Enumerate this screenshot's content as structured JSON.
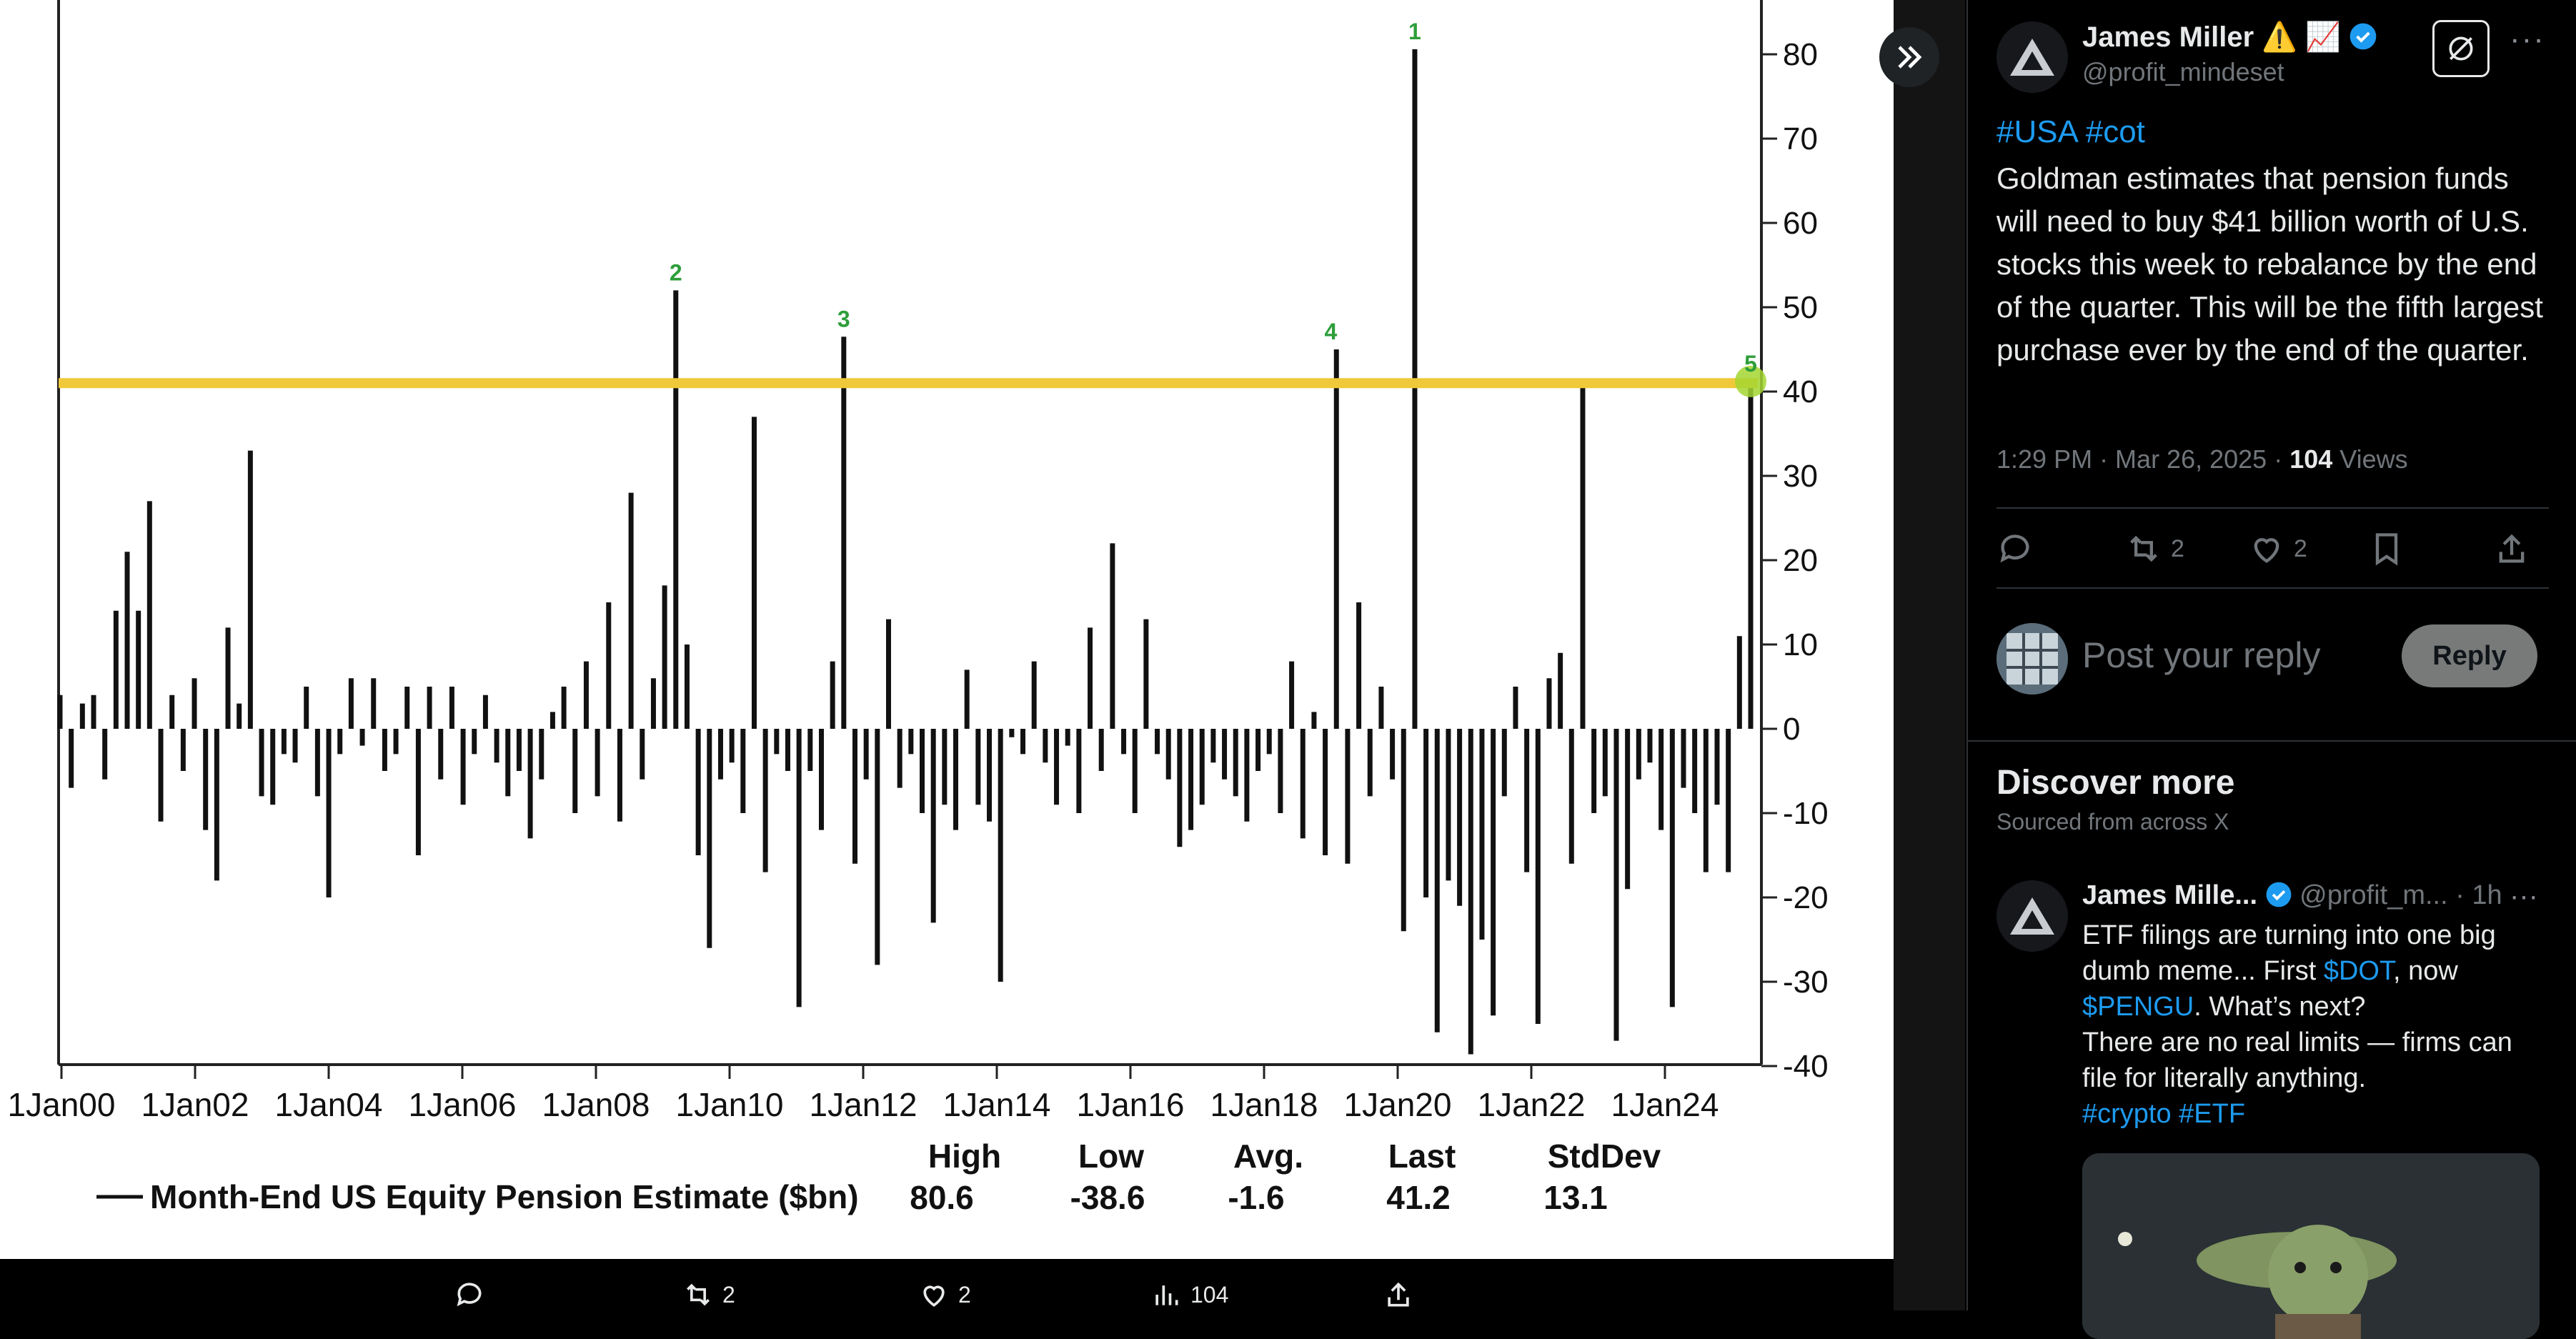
{
  "viewer": {
    "actions": {
      "retweets": "2",
      "likes": "2",
      "views": "104"
    }
  },
  "chart_data": {
    "type": "bar",
    "title": "",
    "ylim": [
      -40,
      85
    ],
    "yticks": [
      80,
      70,
      60,
      50,
      40,
      30,
      20,
      10,
      0,
      -10,
      -20,
      -30,
      -40
    ],
    "x_tick_labels": [
      "1Jan00",
      "1Jan02",
      "1Jan04",
      "1Jan06",
      "1Jan08",
      "1Jan10",
      "1Jan12",
      "1Jan14",
      "1Jan16",
      "1Jan18",
      "1Jan20",
      "1Jan22",
      "1Jan24"
    ],
    "x_range": [
      "2000-01",
      "2025-03"
    ],
    "reference_line": {
      "value": 41,
      "color": "#f0c93a"
    },
    "highlight_point": {
      "date": "2025-03",
      "value": 41.2,
      "color": "#a5d631"
    },
    "markers": [
      {
        "label": "1",
        "date": "2020-03",
        "value": 80.6
      },
      {
        "label": "2",
        "date": "2009-03",
        "value": 52
      },
      {
        "label": "3",
        "date": "2011-09",
        "value": 46.5
      },
      {
        "label": "4",
        "date": "2018-12",
        "value": 45
      },
      {
        "label": "5",
        "date": "2025-03",
        "value": 41.2
      }
    ],
    "series": [
      {
        "name": "Month-End US Equity Pension Estimate ($bn)",
        "points": [
          [
            "2000-01",
            4
          ],
          [
            "2000-03",
            -7
          ],
          [
            "2000-05",
            3
          ],
          [
            "2000-07",
            4
          ],
          [
            "2000-09",
            -6
          ],
          [
            "2000-11",
            14
          ],
          [
            "2001-01",
            21
          ],
          [
            "2001-03",
            14
          ],
          [
            "2001-05",
            27
          ],
          [
            "2001-07",
            -11
          ],
          [
            "2001-09",
            4
          ],
          [
            "2001-11",
            -5
          ],
          [
            "2002-01",
            6
          ],
          [
            "2002-03",
            -12
          ],
          [
            "2002-05",
            -18
          ],
          [
            "2002-07",
            12
          ],
          [
            "2002-09",
            3
          ],
          [
            "2002-11",
            33
          ],
          [
            "2003-01",
            -8
          ],
          [
            "2003-03",
            -9
          ],
          [
            "2003-05",
            -3
          ],
          [
            "2003-07",
            -4
          ],
          [
            "2003-09",
            5
          ],
          [
            "2003-11",
            -8
          ],
          [
            "2004-01",
            -20
          ],
          [
            "2004-03",
            -3
          ],
          [
            "2004-05",
            6
          ],
          [
            "2004-07",
            -2
          ],
          [
            "2004-09",
            6
          ],
          [
            "2004-11",
            -5
          ],
          [
            "2005-01",
            -3
          ],
          [
            "2005-03",
            5
          ],
          [
            "2005-05",
            -15
          ],
          [
            "2005-07",
            5
          ],
          [
            "2005-09",
            -6
          ],
          [
            "2005-11",
            5
          ],
          [
            "2006-01",
            -9
          ],
          [
            "2006-03",
            -3
          ],
          [
            "2006-05",
            4
          ],
          [
            "2006-07",
            -4
          ],
          [
            "2006-09",
            -8
          ],
          [
            "2006-11",
            -5
          ],
          [
            "2007-01",
            -13
          ],
          [
            "2007-03",
            -6
          ],
          [
            "2007-05",
            2
          ],
          [
            "2007-07",
            5
          ],
          [
            "2007-09",
            -10
          ],
          [
            "2007-11",
            8
          ],
          [
            "2008-01",
            -8
          ],
          [
            "2008-03",
            15
          ],
          [
            "2008-05",
            -11
          ],
          [
            "2008-07",
            28
          ],
          [
            "2008-09",
            -6
          ],
          [
            "2008-11",
            6
          ],
          [
            "2009-01",
            17
          ],
          [
            "2009-03",
            52
          ],
          [
            "2009-05",
            10
          ],
          [
            "2009-07",
            -15
          ],
          [
            "2009-09",
            -26
          ],
          [
            "2009-11",
            -6
          ],
          [
            "2010-01",
            -4
          ],
          [
            "2010-03",
            -10
          ],
          [
            "2010-05",
            37
          ],
          [
            "2010-07",
            -17
          ],
          [
            "2010-09",
            -3
          ],
          [
            "2010-11",
            -5
          ],
          [
            "2011-01",
            -33
          ],
          [
            "2011-03",
            -5
          ],
          [
            "2011-05",
            -12
          ],
          [
            "2011-07",
            8
          ],
          [
            "2011-09",
            46.5
          ],
          [
            "2011-11",
            -16
          ],
          [
            "2012-01",
            -6
          ],
          [
            "2012-03",
            -28
          ],
          [
            "2012-05",
            13
          ],
          [
            "2012-07",
            -7
          ],
          [
            "2012-09",
            -3
          ],
          [
            "2012-11",
            -10
          ],
          [
            "2013-01",
            -23
          ],
          [
            "2013-03",
            -9
          ],
          [
            "2013-05",
            -12
          ],
          [
            "2013-07",
            7
          ],
          [
            "2013-09",
            -9
          ],
          [
            "2013-11",
            -11
          ],
          [
            "2014-01",
            -30
          ],
          [
            "2014-03",
            -1
          ],
          [
            "2014-05",
            -3
          ],
          [
            "2014-07",
            8
          ],
          [
            "2014-09",
            -4
          ],
          [
            "2014-11",
            -9
          ],
          [
            "2015-01",
            -2
          ],
          [
            "2015-03",
            -10
          ],
          [
            "2015-05",
            12
          ],
          [
            "2015-07",
            -5
          ],
          [
            "2015-09",
            22
          ],
          [
            "2015-11",
            -3
          ],
          [
            "2016-01",
            -10
          ],
          [
            "2016-03",
            13
          ],
          [
            "2016-05",
            -3
          ],
          [
            "2016-07",
            -6
          ],
          [
            "2016-09",
            -14
          ],
          [
            "2016-11",
            -12
          ],
          [
            "2017-01",
            -9
          ],
          [
            "2017-03",
            -4
          ],
          [
            "2017-05",
            -6
          ],
          [
            "2017-07",
            -8
          ],
          [
            "2017-09",
            -11
          ],
          [
            "2017-11",
            -5
          ],
          [
            "2018-01",
            -3
          ],
          [
            "2018-03",
            -10
          ],
          [
            "2018-05",
            8
          ],
          [
            "2018-07",
            -13
          ],
          [
            "2018-09",
            2
          ],
          [
            "2018-11",
            -15
          ],
          [
            "2019-01",
            45
          ],
          [
            "2019-03",
            -16
          ],
          [
            "2019-05",
            15
          ],
          [
            "2019-07",
            -8
          ],
          [
            "2019-09",
            5
          ],
          [
            "2019-11",
            -6
          ],
          [
            "2020-01",
            -24
          ],
          [
            "2020-03",
            80.6
          ],
          [
            "2020-05",
            -20
          ],
          [
            "2020-07",
            -36
          ],
          [
            "2020-09",
            -18
          ],
          [
            "2020-11",
            -21
          ],
          [
            "2021-01",
            -38.6
          ],
          [
            "2021-03",
            -25
          ],
          [
            "2021-05",
            -34
          ],
          [
            "2021-07",
            -8
          ],
          [
            "2021-09",
            5
          ],
          [
            "2021-11",
            -17
          ],
          [
            "2022-01",
            -35
          ],
          [
            "2022-03",
            6
          ],
          [
            "2022-05",
            9
          ],
          [
            "2022-07",
            -16
          ],
          [
            "2022-09",
            41
          ],
          [
            "2022-11",
            -10
          ],
          [
            "2023-01",
            -8
          ],
          [
            "2023-03",
            -37
          ],
          [
            "2023-05",
            -19
          ],
          [
            "2023-07",
            -6
          ],
          [
            "2023-09",
            -4
          ],
          [
            "2023-11",
            -12
          ],
          [
            "2024-01",
            -33
          ],
          [
            "2024-03",
            -7
          ],
          [
            "2024-05",
            -10
          ],
          [
            "2024-07",
            -17
          ],
          [
            "2024-09",
            -9
          ],
          [
            "2024-11",
            -17
          ],
          [
            "2025-01",
            11
          ],
          [
            "2025-03",
            41.2
          ]
        ]
      }
    ],
    "legend": {
      "label": "Month-End US Equity Pension Estimate ($bn)",
      "headers": [
        "High",
        "Low",
        "Avg.",
        "Last",
        "StdDev"
      ],
      "values": [
        "80.6",
        "-38.6",
        "-1.6",
        "41.2",
        "13.1"
      ]
    }
  },
  "tweet": {
    "author_name": "James Miller",
    "author_emoji": "⚠️ 📈",
    "author_handle": "@profit_mindeset",
    "hashtags": "#USA #cot",
    "body": "Goldman estimates that pension funds will need to buy $41 billion worth of U.S. stocks this week to rebalance by the end of the quarter. This will be the fifth largest purchase ever by the end of the quarter.",
    "time": "1:29 PM · Mar 26, 2025 ·",
    "views_count": "104",
    "views_label": "Views",
    "retweets": "2",
    "likes": "2",
    "reply_placeholder": "Post your reply",
    "reply_button": "Reply"
  },
  "discover": {
    "title": "Discover more",
    "subtitle": "Sourced from across X",
    "related": {
      "name": "James Mille...",
      "handle_time": "@profit_m... · 1h",
      "line1": "ETF filings are turning into one big dumb meme... First ",
      "cashtag1": "$DOT",
      "line2": ", now ",
      "cashtag2": "$PENGU",
      "line3": ". What’s next?",
      "line4": "There are no real limits — firms can file for literally anything.",
      "hashtags": "#crypto #ETF"
    }
  },
  "colors": {
    "accent": "#1d9bf0",
    "verified": "#1d9bf0",
    "reference_line": "#f0c93a",
    "marker": "#2e9e3a"
  }
}
